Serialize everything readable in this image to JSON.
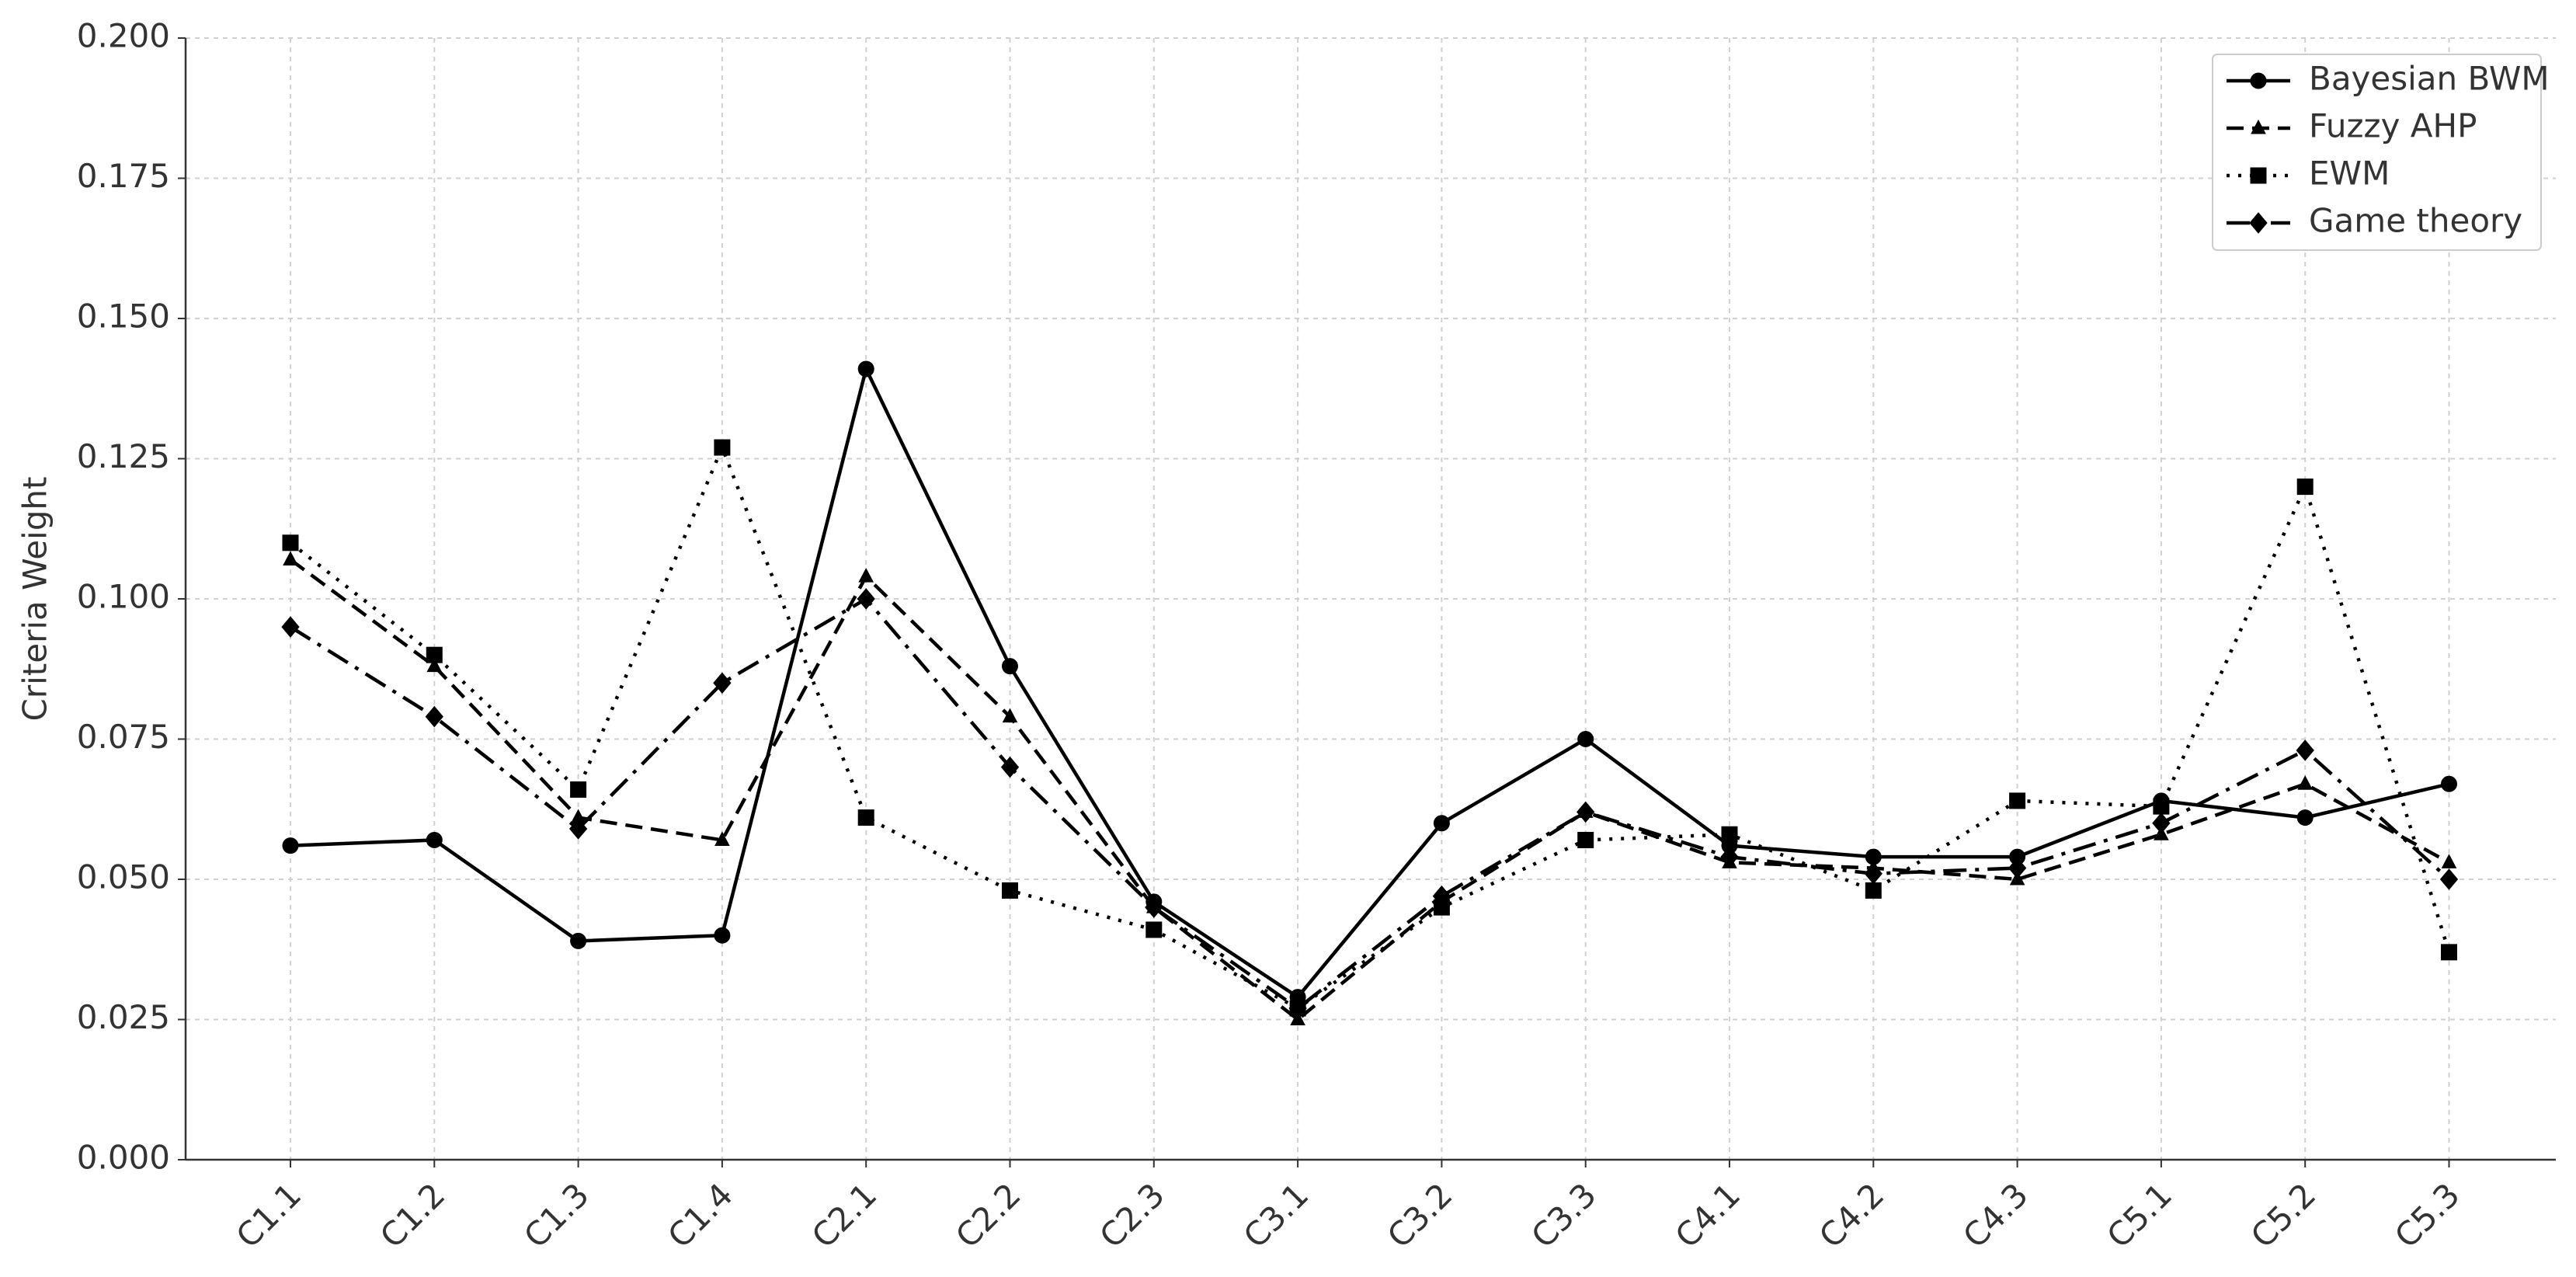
{
  "chart_data": {
    "type": "line",
    "y_label": "Criteria Weight",
    "categories": [
      "C1.1",
      "C1.2",
      "C1.3",
      "C1.4",
      "C2.1",
      "C2.2",
      "C2.3",
      "C3.1",
      "C3.2",
      "C3.3",
      "C4.1",
      "C4.2",
      "C4.3",
      "C5.1",
      "C5.2",
      "C5.3"
    ],
    "series": [
      {
        "name": "Bayesian BWM",
        "color": "#000000",
        "linestyle": "solid",
        "marker": "circle",
        "values": [
          0.056,
          0.057,
          0.039,
          0.04,
          0.141,
          0.088,
          0.046,
          0.029,
          0.06,
          0.075,
          0.056,
          0.054,
          0.054,
          0.064,
          0.061,
          0.067
        ]
      },
      {
        "name": "Fuzzy AHP",
        "color": "#000000",
        "linestyle": "dashed",
        "marker": "triangle",
        "values": [
          0.107,
          0.088,
          0.061,
          0.057,
          0.104,
          0.079,
          0.045,
          0.025,
          0.046,
          0.062,
          0.053,
          0.052,
          0.05,
          0.058,
          0.067,
          0.053
        ]
      },
      {
        "name": "EWM",
        "color": "#000000",
        "linestyle": "dotted",
        "marker": "square",
        "values": [
          0.11,
          0.09,
          0.066,
          0.127,
          0.061,
          0.048,
          0.041,
          0.027,
          0.045,
          0.057,
          0.058,
          0.048,
          0.064,
          0.063,
          0.12,
          0.037
        ]
      },
      {
        "name": "Game theory",
        "color": "#000000",
        "linestyle": "dashdot",
        "marker": "diamond",
        "values": [
          0.095,
          0.079,
          0.059,
          0.085,
          0.1,
          0.07,
          0.045,
          0.027,
          0.047,
          0.062,
          0.054,
          0.051,
          0.052,
          0.06,
          0.073,
          0.05
        ]
      }
    ],
    "ylim": [
      0,
      0.2
    ],
    "yticks": [
      {
        "value": 0,
        "label": "0.000"
      },
      0.025,
      {
        "value": 0.05,
        "label": "0.050"
      },
      0.075,
      {
        "value": 0.1,
        "label": "0.100"
      },
      0.125,
      {
        "value": 0.15,
        "label": "0.150"
      },
      0.175,
      {
        "value": 0.2,
        "label": "0.200"
      }
    ],
    "grid": true,
    "legend": "upper right"
  }
}
